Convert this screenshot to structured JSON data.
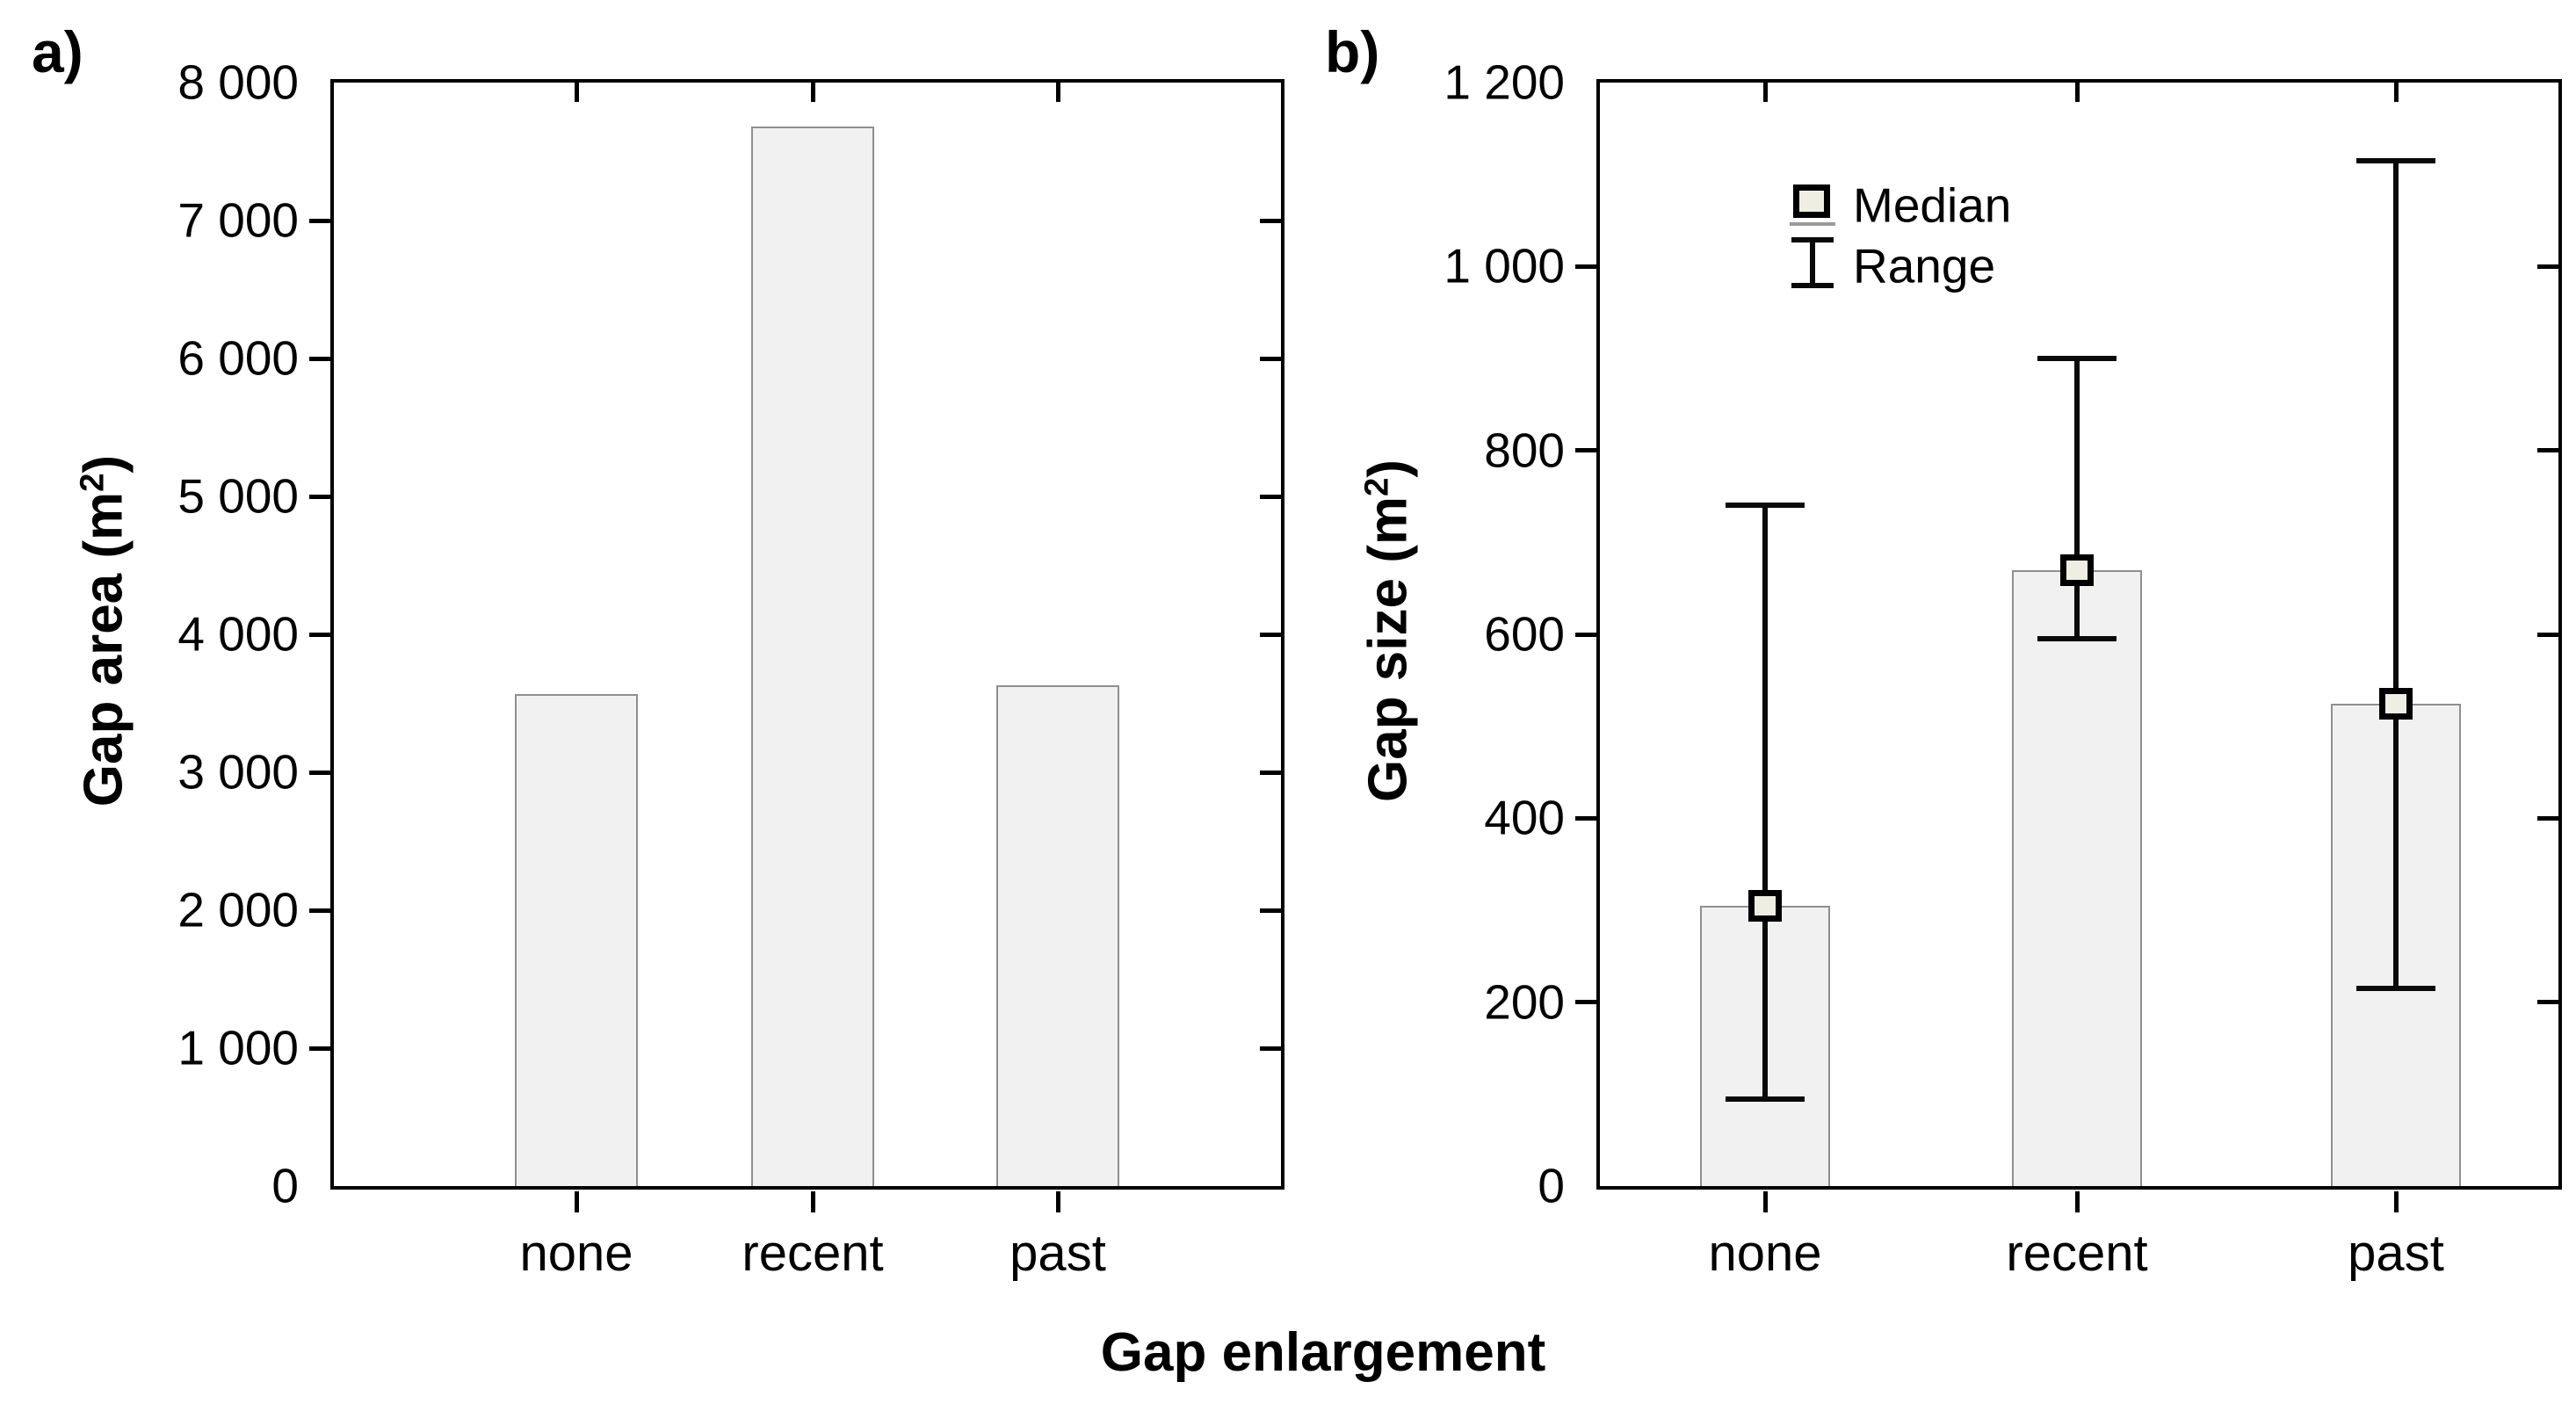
{
  "figure": {
    "x_title": "Gap enlargement",
    "panel_a": {
      "label": "a)",
      "y_title": {
        "prefix": "Gap area (m",
        "sup": "2",
        "suffix": ")"
      }
    },
    "panel_b": {
      "label": "b)",
      "y_title": {
        "prefix": "Gap size (m",
        "sup": "2",
        "suffix": ")"
      }
    },
    "legend": {
      "median_label": "Median",
      "range_label": "Range"
    },
    "colors": {
      "bar_fill": "#f1f1f1",
      "bar_border": "#8f8f8f",
      "marker_fill": "#efeee2",
      "marker_border": "#000000",
      "axis": "#000000"
    }
  },
  "chart_data": [
    {
      "type": "bar",
      "panel": "a",
      "title": "",
      "ylabel": "Gap area (m2)",
      "xlabel": "Gap enlargement",
      "categories": [
        "none",
        "recent",
        "past"
      ],
      "values": [
        3570,
        7680,
        3630
      ],
      "ylim": [
        0,
        8000
      ],
      "ytick_step": 1000,
      "ytick_labels": [
        "0",
        "1 000",
        "2 000",
        "3 000",
        "4 000",
        "5 000",
        "6 000",
        "7 000",
        "8 000"
      ],
      "grid": false,
      "legend_position": "none"
    },
    {
      "type": "bar",
      "panel": "b",
      "title": "",
      "ylabel": "Gap size (m2)",
      "xlabel": "Gap enlargement",
      "categories": [
        "none",
        "recent",
        "past"
      ],
      "series": [
        {
          "name": "Median",
          "values": [
            305,
            670,
            525
          ]
        },
        {
          "name": "Range min",
          "values": [
            95,
            595,
            215
          ]
        },
        {
          "name": "Range max",
          "values": [
            740,
            900,
            1115
          ]
        }
      ],
      "ylim": [
        0,
        1200
      ],
      "ytick_step": 200,
      "ytick_labels": [
        "0",
        "200",
        "400",
        "600",
        "800",
        "1 000",
        "1 200"
      ],
      "grid": false,
      "legend_position": "upper-left-inside"
    }
  ]
}
